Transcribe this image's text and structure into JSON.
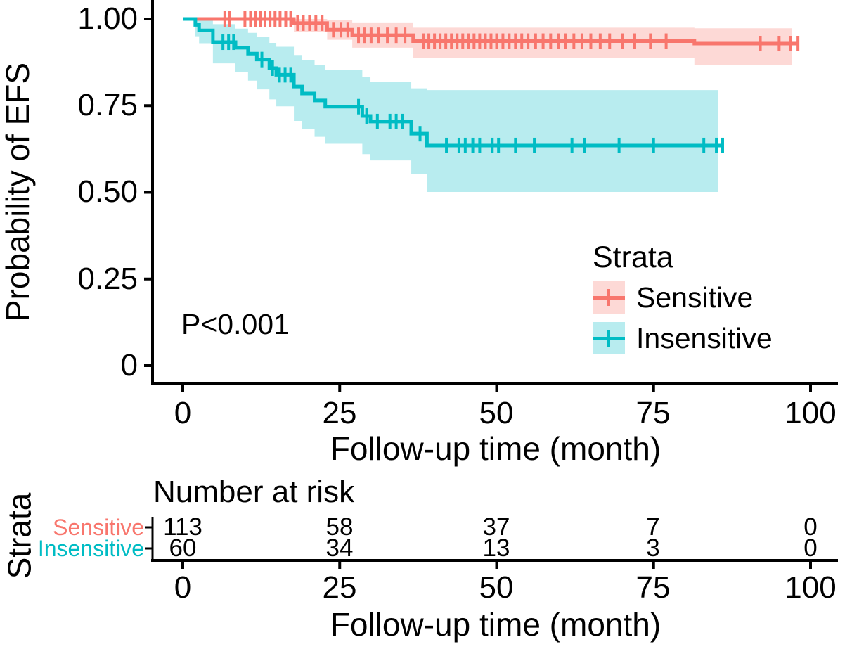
{
  "chart_data": {
    "type": "line",
    "subtype": "kaplan-meier-survival",
    "title": "",
    "xlabel": "Follow-up time (month)",
    "ylabel": "Probability of EFS",
    "pvalue": "P<0.001",
    "xlim": [
      0,
      100
    ],
    "ylim": [
      0,
      1
    ],
    "grid": false,
    "x_ticks": [
      0,
      25,
      50,
      75,
      100
    ],
    "x_tick_labels": [
      "0",
      "25",
      "50",
      "75",
      "100"
    ],
    "y_ticks": [
      {
        "value": 1.0
      },
      {
        "value": 0.75
      },
      {
        "value": 0.5
      },
      {
        "value": 0.25
      },
      {
        "value": 0
      }
    ],
    "y_tick_labels": [
      "1.00",
      "0.75",
      "0.50",
      "0.25",
      "0"
    ],
    "legend": {
      "title": "Strata",
      "position": "inside-right",
      "entries": [
        {
          "label": "Sensitive",
          "color": "#F8766D"
        },
        {
          "label": "Insensitive",
          "color": "#00BCC4"
        }
      ]
    },
    "series": [
      {
        "name": "Sensitive",
        "color": "#F8766D",
        "band_color": "rgba(248,118,109,0.28)",
        "end_month": 98,
        "band_end_month": 97,
        "steps": [
          [
            0,
            1
          ],
          [
            17.7,
            0.988
          ],
          [
            23,
            0.969
          ],
          [
            27,
            0.953
          ],
          [
            36.7,
            0.936
          ],
          [
            81.5,
            0.929
          ]
        ],
        "band": [
          [
            0,
            1,
            1
          ],
          [
            17.7,
            0.963,
            1
          ],
          [
            23,
            0.94,
            0.998
          ],
          [
            27,
            0.917,
            0.99
          ],
          [
            36.7,
            0.887,
            0.975
          ],
          [
            81.5,
            0.866,
            0.973
          ]
        ],
        "censors": [
          [
            6.7,
            1
          ],
          [
            7.5,
            1
          ],
          [
            9.9,
            1
          ],
          [
            10.8,
            1
          ],
          [
            11.6,
            1
          ],
          [
            12.4,
            1
          ],
          [
            13.1,
            1
          ],
          [
            13.9,
            1
          ],
          [
            14.7,
            1
          ],
          [
            15.5,
            1
          ],
          [
            16.4,
            1
          ],
          [
            17.2,
            1
          ],
          [
            18.3,
            0.988
          ],
          [
            19.2,
            0.988
          ],
          [
            20.2,
            0.988
          ],
          [
            21.2,
            0.988
          ],
          [
            22.2,
            0.988
          ],
          [
            24,
            0.969
          ],
          [
            25.2,
            0.969
          ],
          [
            26.3,
            0.969
          ],
          [
            28,
            0.953
          ],
          [
            29,
            0.953
          ],
          [
            30,
            0.953
          ],
          [
            31.2,
            0.953
          ],
          [
            32.6,
            0.953
          ],
          [
            34,
            0.953
          ],
          [
            35.4,
            0.953
          ],
          [
            38.3,
            0.936
          ],
          [
            39.2,
            0.936
          ],
          [
            40.1,
            0.936
          ],
          [
            41,
            0.936
          ],
          [
            41.9,
            0.936
          ],
          [
            42.8,
            0.936
          ],
          [
            43.7,
            0.936
          ],
          [
            44.6,
            0.936
          ],
          [
            45.5,
            0.936
          ],
          [
            46.4,
            0.936
          ],
          [
            47.3,
            0.936
          ],
          [
            48.2,
            0.936
          ],
          [
            49.1,
            0.936
          ],
          [
            50,
            0.936
          ],
          [
            51,
            0.936
          ],
          [
            52,
            0.936
          ],
          [
            53,
            0.936
          ],
          [
            54,
            0.936
          ],
          [
            55,
            0.936
          ],
          [
            56.2,
            0.936
          ],
          [
            57.4,
            0.936
          ],
          [
            58.6,
            0.936
          ],
          [
            59.8,
            0.936
          ],
          [
            61,
            0.936
          ],
          [
            62.3,
            0.936
          ],
          [
            63.6,
            0.936
          ],
          [
            65,
            0.936
          ],
          [
            66.5,
            0.936
          ],
          [
            68,
            0.936
          ],
          [
            70,
            0.936
          ],
          [
            72,
            0.936
          ],
          [
            74.5,
            0.936
          ],
          [
            77,
            0.936
          ],
          [
            92,
            0.929
          ],
          [
            95,
            0.929
          ],
          [
            96.8,
            0.929
          ],
          [
            98,
            0.929
          ]
        ]
      },
      {
        "name": "Insensitive",
        "color": "#00BCC4",
        "band_color": "rgba(0,188,196,0.28)",
        "end_month": 86,
        "band_end_month": 85.3,
        "steps": [
          [
            0,
            1
          ],
          [
            2,
            0.983
          ],
          [
            2.6,
            0.967
          ],
          [
            4.8,
            0.933
          ],
          [
            8.4,
            0.917
          ],
          [
            10.4,
            0.9
          ],
          [
            11.8,
            0.883
          ],
          [
            13.8,
            0.858
          ],
          [
            14.9,
            0.839
          ],
          [
            17.7,
            0.805
          ],
          [
            19,
            0.785
          ],
          [
            21,
            0.765
          ],
          [
            22.7,
            0.747
          ],
          [
            28.6,
            0.72
          ],
          [
            29.9,
            0.704
          ],
          [
            36.4,
            0.669
          ],
          [
            38.9,
            0.635
          ]
        ],
        "band": [
          [
            0,
            1,
            1
          ],
          [
            2,
            0.95,
            1
          ],
          [
            2.6,
            0.93,
            0.996
          ],
          [
            4.8,
            0.872,
            0.985
          ],
          [
            8.4,
            0.846,
            0.972
          ],
          [
            10.4,
            0.822,
            0.96
          ],
          [
            11.8,
            0.797,
            0.948
          ],
          [
            13.8,
            0.768,
            0.931
          ],
          [
            14.9,
            0.748,
            0.92
          ],
          [
            17.7,
            0.706,
            0.896
          ],
          [
            19,
            0.683,
            0.882
          ],
          [
            21,
            0.66,
            0.867
          ],
          [
            22.7,
            0.64,
            0.853
          ],
          [
            28.6,
            0.61,
            0.832
          ],
          [
            29.9,
            0.592,
            0.818
          ],
          [
            36.4,
            0.553,
            0.8
          ],
          [
            38.9,
            0.501,
            0.795
          ]
        ],
        "censors": [
          [
            6.4,
            0.933
          ],
          [
            7.3,
            0.933
          ],
          [
            8.1,
            0.933
          ],
          [
            12.6,
            0.883
          ],
          [
            14.3,
            0.858
          ],
          [
            15.4,
            0.839
          ],
          [
            16.3,
            0.839
          ],
          [
            17.2,
            0.839
          ],
          [
            28,
            0.747
          ],
          [
            29.3,
            0.72
          ],
          [
            31,
            0.704
          ],
          [
            33,
            0.704
          ],
          [
            34,
            0.704
          ],
          [
            35,
            0.704
          ],
          [
            37.8,
            0.669
          ],
          [
            42,
            0.635
          ],
          [
            44,
            0.635
          ],
          [
            45,
            0.635
          ],
          [
            46.2,
            0.635
          ],
          [
            47.3,
            0.635
          ],
          [
            49.3,
            0.635
          ],
          [
            50.3,
            0.635
          ],
          [
            53,
            0.635
          ],
          [
            56,
            0.635
          ],
          [
            62,
            0.635
          ],
          [
            64,
            0.635
          ],
          [
            69.5,
            0.635
          ],
          [
            75,
            0.635
          ],
          [
            83,
            0.635
          ],
          [
            85,
            0.635
          ],
          [
            86,
            0.635
          ]
        ]
      }
    ],
    "risk_table": {
      "title": "Number at risk",
      "axis_label": "Strata",
      "xlabel": "Follow-up time (month)",
      "x_ticks": [
        0,
        25,
        50,
        75,
        100
      ],
      "x_tick_labels": [
        "0",
        "25",
        "50",
        "75",
        "100"
      ],
      "rows": [
        {
          "label": "Sensitive",
          "color": "#F8766D",
          "counts": [
            "113",
            "58",
            "37",
            "7",
            "0"
          ]
        },
        {
          "label": "Insensitive",
          "color": "#00BCC4",
          "counts": [
            "60",
            "34",
            "13",
            "3",
            "0"
          ]
        }
      ]
    }
  }
}
